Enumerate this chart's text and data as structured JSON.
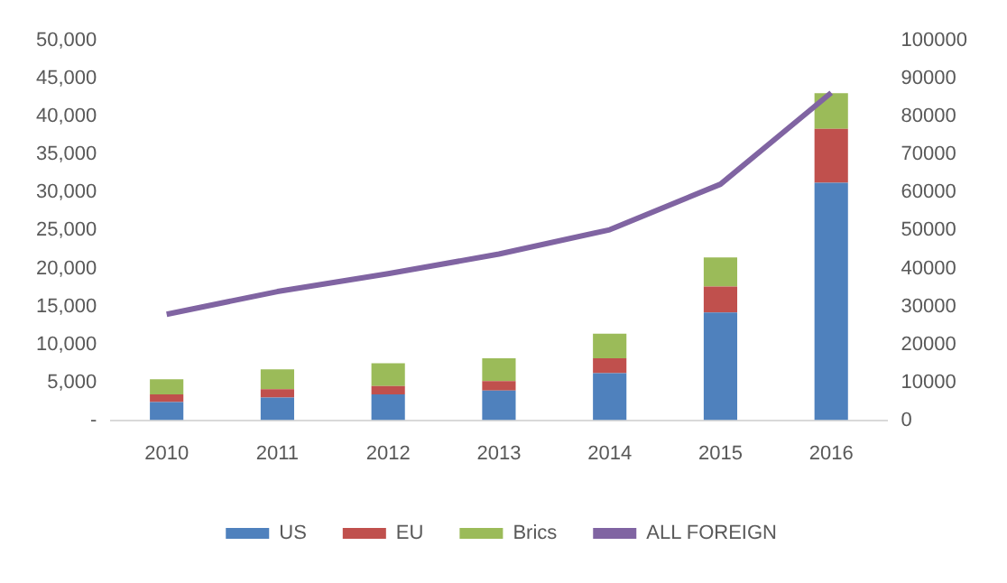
{
  "chart_data": {
    "type": "bar",
    "stacked": true,
    "categories": [
      "2010",
      "2011",
      "2012",
      "2013",
      "2014",
      "2015",
      "2016"
    ],
    "series": [
      {
        "name": "US",
        "color": "#4f81bd",
        "values": [
          2400,
          3000,
          3400,
          3900,
          6200,
          14200,
          31300
        ]
      },
      {
        "name": "EU",
        "color": "#c0504d",
        "values": [
          1000,
          1100,
          1100,
          1250,
          1950,
          3400,
          7100
        ]
      },
      {
        "name": "Brics",
        "color": "#9bbb59",
        "values": [
          2000,
          2600,
          3000,
          3000,
          3250,
          3850,
          4700
        ]
      },
      {
        "name": "ALL FOREIGN",
        "type": "line",
        "axis": "y2",
        "color": "#8064a2",
        "values": [
          27900,
          33900,
          38600,
          43800,
          50200,
          62200,
          86300
        ]
      }
    ],
    "ylim": [
      0,
      50000
    ],
    "yticks": [
      {
        "value": 0,
        "label": "-"
      },
      {
        "value": 5000,
        "label": "5,000"
      },
      {
        "value": 10000,
        "label": "10,000"
      },
      {
        "value": 15000,
        "label": "15,000"
      },
      {
        "value": 20000,
        "label": "20,000"
      },
      {
        "value": 25000,
        "label": "25,000"
      },
      {
        "value": 30000,
        "label": "30,000"
      },
      {
        "value": 35000,
        "label": "35,000"
      },
      {
        "value": 40000,
        "label": "40,000"
      },
      {
        "value": 45000,
        "label": "45,000"
      },
      {
        "value": 50000,
        "label": "50,000"
      }
    ],
    "y2lim": [
      0,
      100000
    ],
    "y2ticks": [
      0,
      10000,
      20000,
      30000,
      40000,
      50000,
      60000,
      70000,
      80000,
      90000,
      100000
    ],
    "grid": false,
    "legend": "bottom",
    "marker": "none"
  }
}
